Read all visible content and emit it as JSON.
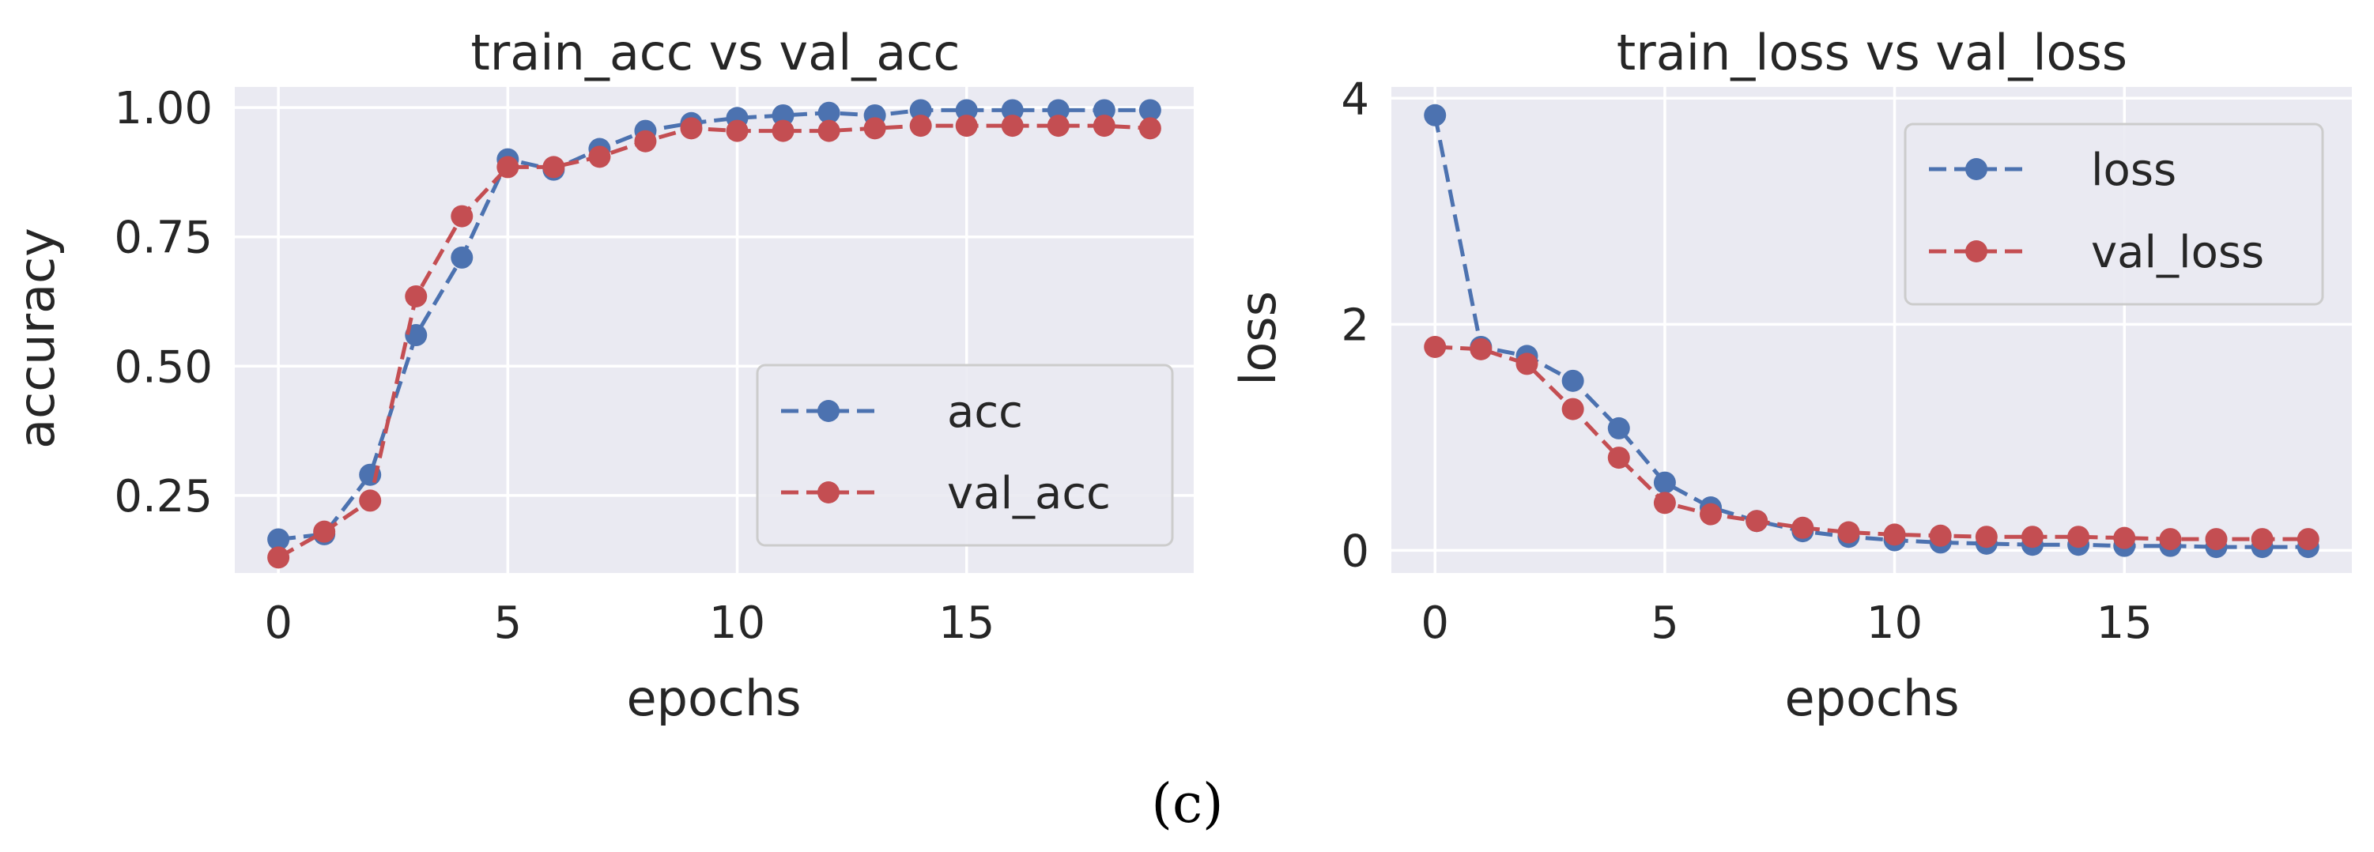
{
  "colors": {
    "plot_background": "#eaeaf2",
    "grid": "#ffffff",
    "series_blue": "#4c72b0",
    "series_red": "#c44e52",
    "legend_background": "#eaeaf2",
    "legend_border": "#cccccc"
  },
  "caption": "(c)",
  "chart_data": [
    {
      "type": "line",
      "title": "train_acc vs val_acc",
      "xlabel": "epochs",
      "ylabel": "accuracy",
      "x": [
        0,
        1,
        2,
        3,
        4,
        5,
        6,
        7,
        8,
        9,
        10,
        11,
        12,
        13,
        14,
        15,
        16,
        17,
        18,
        19
      ],
      "xlim": [
        -0.95,
        19.95
      ],
      "ylim": [
        0.1,
        1.04
      ],
      "xticks": [
        0,
        5,
        10,
        15
      ],
      "xtick_labels": [
        "0",
        "5",
        "10",
        "15"
      ],
      "yticks": [
        0.25,
        0.5,
        0.75,
        1.0
      ],
      "ytick_labels": [
        "0.25",
        "0.50",
        "0.75",
        "1.00"
      ],
      "grid": true,
      "legend_position": "center-right",
      "series": [
        {
          "name": "acc",
          "color": "#4c72b0",
          "style": "dashed",
          "marker": "circle",
          "values": [
            0.165,
            0.175,
            0.29,
            0.56,
            0.71,
            0.9,
            0.88,
            0.92,
            0.955,
            0.97,
            0.98,
            0.985,
            0.99,
            0.985,
            0.995,
            0.995,
            0.995,
            0.995,
            0.995,
            0.995
          ]
        },
        {
          "name": "val_acc",
          "color": "#c44e52",
          "style": "dashed",
          "marker": "circle",
          "values": [
            0.13,
            0.18,
            0.24,
            0.635,
            0.79,
            0.885,
            0.885,
            0.905,
            0.935,
            0.96,
            0.955,
            0.955,
            0.955,
            0.96,
            0.965,
            0.965,
            0.965,
            0.965,
            0.965,
            0.96
          ]
        }
      ]
    },
    {
      "type": "line",
      "title": "train_loss vs val_loss",
      "xlabel": "epochs",
      "ylabel": "loss",
      "x": [
        0,
        1,
        2,
        3,
        4,
        5,
        6,
        7,
        8,
        9,
        10,
        11,
        12,
        13,
        14,
        15,
        16,
        17,
        18,
        19
      ],
      "xlim": [
        -0.95,
        19.95
      ],
      "ylim": [
        -0.2,
        4.1
      ],
      "xticks": [
        0,
        5,
        10,
        15
      ],
      "xtick_labels": [
        "0",
        "5",
        "10",
        "15"
      ],
      "yticks": [
        0,
        2,
        4
      ],
      "ytick_labels": [
        "0",
        "2",
        "4"
      ],
      "grid": true,
      "legend_position": "top-right",
      "series": [
        {
          "name": "loss",
          "color": "#4c72b0",
          "style": "dashed",
          "marker": "circle",
          "values": [
            3.85,
            1.8,
            1.72,
            1.5,
            1.08,
            0.6,
            0.38,
            0.26,
            0.17,
            0.12,
            0.09,
            0.07,
            0.06,
            0.05,
            0.05,
            0.04,
            0.04,
            0.03,
            0.03,
            0.03
          ]
        },
        {
          "name": "val_loss",
          "color": "#c44e52",
          "style": "dashed",
          "marker": "circle",
          "values": [
            1.8,
            1.78,
            1.65,
            1.25,
            0.82,
            0.42,
            0.32,
            0.26,
            0.2,
            0.16,
            0.14,
            0.13,
            0.12,
            0.12,
            0.12,
            0.11,
            0.1,
            0.1,
            0.1,
            0.1
          ]
        }
      ]
    }
  ]
}
